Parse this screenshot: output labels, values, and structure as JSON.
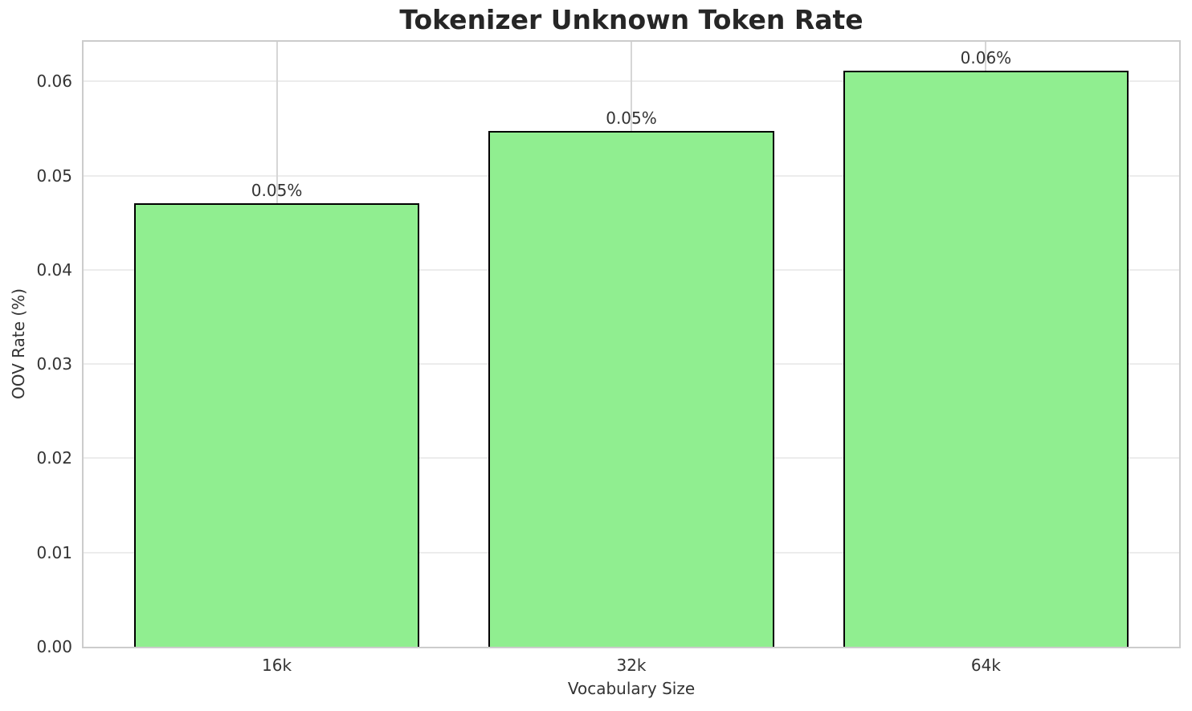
{
  "chart_data": {
    "type": "bar",
    "title": "Tokenizer Unknown Token Rate",
    "xlabel": "Vocabulary Size",
    "ylabel": "OOV Rate (%)",
    "categories": [
      "16k",
      "32k",
      "64k"
    ],
    "values": [
      0.0471,
      0.0547,
      0.0611
    ],
    "bar_labels": [
      "0.05%",
      "0.05%",
      "0.06%"
    ],
    "yticks": [
      0,
      0.01,
      0.02,
      0.03,
      0.04,
      0.05,
      0.06
    ],
    "ytick_labels": [
      "0.00",
      "0.01",
      "0.02",
      "0.03",
      "0.04",
      "0.05",
      "0.06"
    ],
    "ylim": [
      0,
      0.0642
    ],
    "xlim": [
      -0.545,
      2.545
    ],
    "bar_width": 0.805,
    "grid": true,
    "legend": false,
    "colors": {
      "bar_fill": "#90EE90",
      "bar_edge": "#000000",
      "background": "#ffffff",
      "grid_horizontal": "#ececec",
      "grid_vertical": "#d6d6d6",
      "spine": "#cccccc",
      "title_text": "#262626",
      "tick_text": "#333333"
    }
  }
}
